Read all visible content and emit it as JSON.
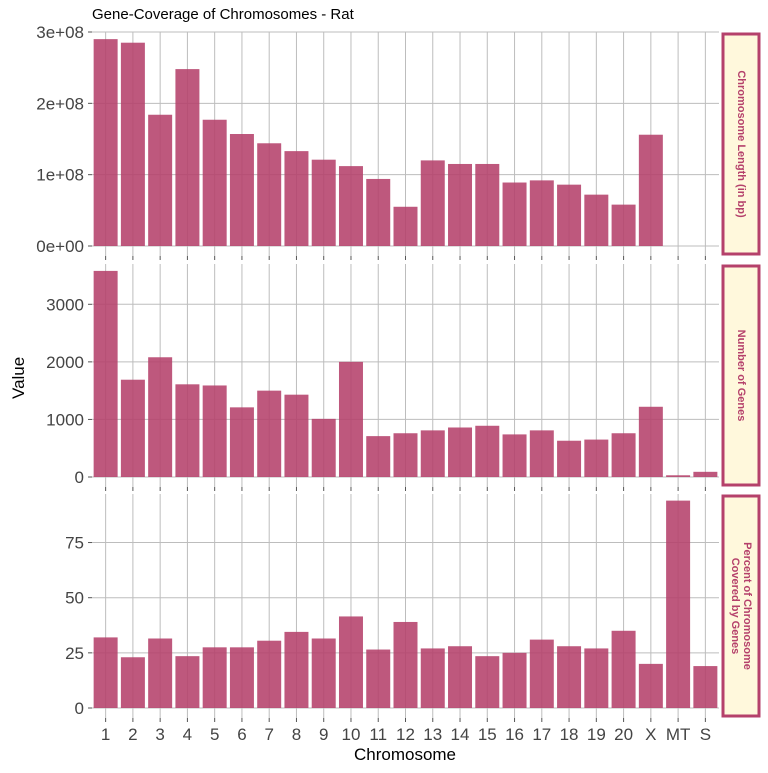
{
  "chart_data": {
    "type": "bar",
    "title": "Gene-Coverage of Chromosomes - Rat",
    "xlabel": "Chromosome",
    "ylabel": "Value",
    "categories": [
      "1",
      "2",
      "3",
      "4",
      "5",
      "6",
      "7",
      "8",
      "9",
      "10",
      "11",
      "12",
      "13",
      "14",
      "15",
      "16",
      "17",
      "18",
      "19",
      "20",
      "X",
      "MT",
      "S"
    ],
    "bar_color": "#b5416b",
    "strip_fill": "#fff8dc",
    "strip_border": "#b5416b",
    "grid": true,
    "facets": [
      {
        "name": "Chromosome Length (in bp)",
        "strip_lines": [
          "Chromosome Length (in bp)"
        ],
        "ylim": [
          0,
          300000000
        ],
        "yticks": [
          0,
          100000000,
          200000000,
          300000000
        ],
        "ytick_labels": [
          "0e+00",
          "1e+08",
          "2e+08",
          "3e+08"
        ],
        "values": [
          290000000,
          285000000,
          184000000,
          248000000,
          177000000,
          157000000,
          144000000,
          133000000,
          121000000,
          112000000,
          94000000,
          55000000,
          120000000,
          115000000,
          115000000,
          89000000,
          92000000,
          86000000,
          72000000,
          58000000,
          156000000,
          null,
          null
        ]
      },
      {
        "name": "Number of Genes",
        "strip_lines": [
          "Number of Genes"
        ],
        "ylim": [
          0,
          3700
        ],
        "yticks": [
          0,
          1000,
          2000,
          3000
        ],
        "ytick_labels": [
          "0",
          "1000",
          "2000",
          "3000"
        ],
        "values": [
          3580,
          1690,
          2080,
          1610,
          1590,
          1210,
          1500,
          1430,
          1010,
          2000,
          710,
          760,
          810,
          860,
          890,
          740,
          810,
          630,
          650,
          760,
          1220,
          30,
          90
        ]
      },
      {
        "name": "Percent of Chromosome Covered by Genes",
        "strip_lines": [
          "Percent of Chromosome",
          "Covered by Genes"
        ],
        "ylim": [
          0,
          97
        ],
        "yticks": [
          0,
          25,
          50,
          75
        ],
        "ytick_labels": [
          "0",
          "25",
          "50",
          "75"
        ],
        "values": [
          32,
          23,
          31.5,
          23.5,
          27.5,
          27.5,
          30.5,
          34.5,
          31.5,
          41.5,
          26.5,
          39,
          27,
          28,
          23.5,
          25,
          31,
          28,
          27,
          35,
          20,
          94,
          19
        ]
      }
    ]
  }
}
